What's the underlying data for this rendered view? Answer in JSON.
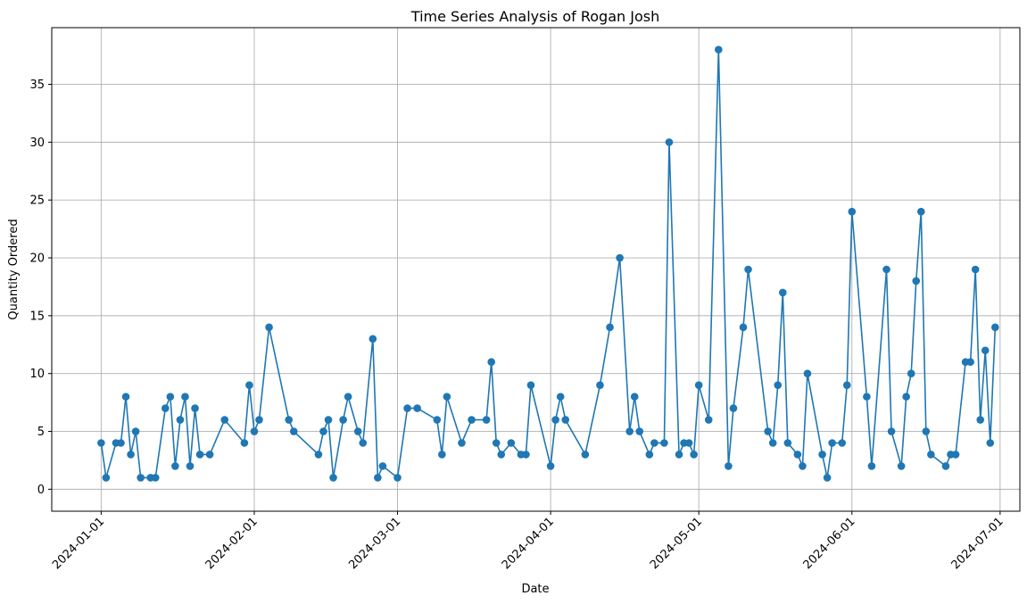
{
  "chart_data": {
    "type": "line",
    "title": "Time Series Analysis of Rogan Josh",
    "xlabel": "Date",
    "ylabel": "Quantity Ordered",
    "x_ticks": [
      "2024-01-01",
      "2024-02-01",
      "2024-03-01",
      "2024-04-01",
      "2024-05-01",
      "2024-06-01",
      "2024-07-01"
    ],
    "y_ticks": [
      0,
      5,
      10,
      15,
      20,
      25,
      30,
      35
    ],
    "xlim": [
      "2023-12-22",
      "2024-07-05"
    ],
    "ylim": [
      -1.9,
      39.9
    ],
    "grid": true,
    "marker": "circle",
    "series": [
      {
        "color": "#1f77b4",
        "points": [
          [
            "2024-01-01",
            4
          ],
          [
            "2024-01-02",
            1
          ],
          [
            "2024-01-04",
            4
          ],
          [
            "2024-01-05",
            4
          ],
          [
            "2024-01-06",
            8
          ],
          [
            "2024-01-07",
            3
          ],
          [
            "2024-01-08",
            5
          ],
          [
            "2024-01-09",
            1
          ],
          [
            "2024-01-11",
            1
          ],
          [
            "2024-01-12",
            1
          ],
          [
            "2024-01-14",
            7
          ],
          [
            "2024-01-15",
            8
          ],
          [
            "2024-01-16",
            2
          ],
          [
            "2024-01-17",
            6
          ],
          [
            "2024-01-18",
            8
          ],
          [
            "2024-01-19",
            2
          ],
          [
            "2024-01-20",
            7
          ],
          [
            "2024-01-21",
            3
          ],
          [
            "2024-01-23",
            3
          ],
          [
            "2024-01-26",
            6
          ],
          [
            "2024-01-30",
            4
          ],
          [
            "2024-01-31",
            9
          ],
          [
            "2024-02-01",
            5
          ],
          [
            "2024-02-02",
            6
          ],
          [
            "2024-02-04",
            14
          ],
          [
            "2024-02-08",
            6
          ],
          [
            "2024-02-09",
            5
          ],
          [
            "2024-02-14",
            3
          ],
          [
            "2024-02-15",
            5
          ],
          [
            "2024-02-16",
            6
          ],
          [
            "2024-02-17",
            1
          ],
          [
            "2024-02-19",
            6
          ],
          [
            "2024-02-20",
            8
          ],
          [
            "2024-02-22",
            5
          ],
          [
            "2024-02-23",
            4
          ],
          [
            "2024-02-25",
            13
          ],
          [
            "2024-02-26",
            1
          ],
          [
            "2024-02-27",
            2
          ],
          [
            "2024-03-01",
            1
          ],
          [
            "2024-03-03",
            7
          ],
          [
            "2024-03-05",
            7
          ],
          [
            "2024-03-09",
            6
          ],
          [
            "2024-03-10",
            3
          ],
          [
            "2024-03-11",
            8
          ],
          [
            "2024-03-14",
            4
          ],
          [
            "2024-03-16",
            6
          ],
          [
            "2024-03-19",
            6
          ],
          [
            "2024-03-20",
            11
          ],
          [
            "2024-03-21",
            4
          ],
          [
            "2024-03-22",
            3
          ],
          [
            "2024-03-24",
            4
          ],
          [
            "2024-03-26",
            3
          ],
          [
            "2024-03-27",
            3
          ],
          [
            "2024-03-28",
            9
          ],
          [
            "2024-04-01",
            2
          ],
          [
            "2024-04-02",
            6
          ],
          [
            "2024-04-03",
            8
          ],
          [
            "2024-04-04",
            6
          ],
          [
            "2024-04-08",
            3
          ],
          [
            "2024-04-11",
            9
          ],
          [
            "2024-04-13",
            14
          ],
          [
            "2024-04-15",
            20
          ],
          [
            "2024-04-17",
            5
          ],
          [
            "2024-04-18",
            8
          ],
          [
            "2024-04-19",
            5
          ],
          [
            "2024-04-21",
            3
          ],
          [
            "2024-04-22",
            4
          ],
          [
            "2024-04-24",
            4
          ],
          [
            "2024-04-25",
            30
          ],
          [
            "2024-04-27",
            3
          ],
          [
            "2024-04-28",
            4
          ],
          [
            "2024-04-29",
            4
          ],
          [
            "2024-04-30",
            3
          ],
          [
            "2024-05-01",
            9
          ],
          [
            "2024-05-03",
            6
          ],
          [
            "2024-05-05",
            38
          ],
          [
            "2024-05-07",
            2
          ],
          [
            "2024-05-08",
            7
          ],
          [
            "2024-05-10",
            14
          ],
          [
            "2024-05-11",
            19
          ],
          [
            "2024-05-15",
            5
          ],
          [
            "2024-05-16",
            4
          ],
          [
            "2024-05-17",
            9
          ],
          [
            "2024-05-18",
            17
          ],
          [
            "2024-05-19",
            4
          ],
          [
            "2024-05-21",
            3
          ],
          [
            "2024-05-22",
            2
          ],
          [
            "2024-05-23",
            10
          ],
          [
            "2024-05-26",
            3
          ],
          [
            "2024-05-27",
            1
          ],
          [
            "2024-05-28",
            4
          ],
          [
            "2024-05-30",
            4
          ],
          [
            "2024-05-31",
            9
          ],
          [
            "2024-06-01",
            24
          ],
          [
            "2024-06-04",
            8
          ],
          [
            "2024-06-05",
            2
          ],
          [
            "2024-06-08",
            19
          ],
          [
            "2024-06-09",
            5
          ],
          [
            "2024-06-11",
            2
          ],
          [
            "2024-06-12",
            8
          ],
          [
            "2024-06-13",
            10
          ],
          [
            "2024-06-14",
            18
          ],
          [
            "2024-06-15",
            24
          ],
          [
            "2024-06-16",
            5
          ],
          [
            "2024-06-17",
            3
          ],
          [
            "2024-06-20",
            2
          ],
          [
            "2024-06-21",
            3
          ],
          [
            "2024-06-22",
            3
          ],
          [
            "2024-06-24",
            11
          ],
          [
            "2024-06-25",
            11
          ],
          [
            "2024-06-26",
            19
          ],
          [
            "2024-06-27",
            6
          ],
          [
            "2024-06-28",
            12
          ],
          [
            "2024-06-29",
            4
          ],
          [
            "2024-06-30",
            14
          ]
        ]
      }
    ]
  }
}
